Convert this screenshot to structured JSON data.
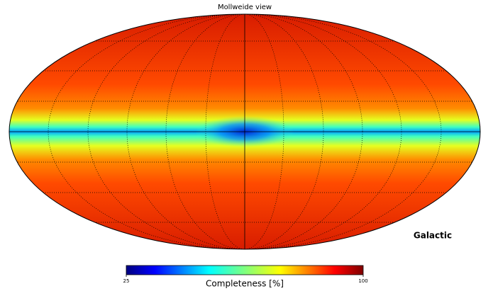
{
  "chart_data": {
    "type": "mollweide",
    "title": "Mollweide view",
    "coord": "Galactic",
    "colorbar": {
      "label": "Completeness [%]",
      "lim": [
        25,
        100
      ],
      "ticks": [
        25,
        100
      ]
    }
  }
}
